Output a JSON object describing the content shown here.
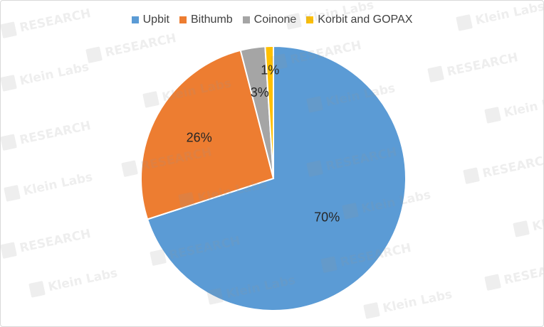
{
  "chart_data": {
    "type": "pie",
    "categories": [
      "Upbit",
      "Bithumb",
      "Coinone",
      "Korbit and GOPAX"
    ],
    "values": [
      70,
      26,
      3,
      1
    ],
    "data_labels": [
      "70%",
      "26%",
      "3%",
      "1%"
    ],
    "colors": [
      "#5B9BD5",
      "#ED7D31",
      "#A5A5A5",
      "#FFC000"
    ],
    "legend_position": "top",
    "start_angle": "12 o'clock, clockwise"
  },
  "watermark": {
    "texts": [
      "Klein Labs",
      "RESEARCH"
    ],
    "logo_icon": "klein-logo-icon"
  }
}
